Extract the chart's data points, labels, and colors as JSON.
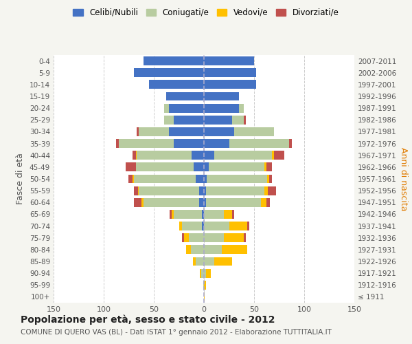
{
  "age_groups": [
    "100+",
    "95-99",
    "90-94",
    "85-89",
    "80-84",
    "75-79",
    "70-74",
    "65-69",
    "60-64",
    "55-59",
    "50-54",
    "45-49",
    "40-44",
    "35-39",
    "30-34",
    "25-29",
    "20-24",
    "15-19",
    "10-14",
    "5-9",
    "0-4"
  ],
  "birth_years": [
    "≤ 1911",
    "1912-1916",
    "1917-1921",
    "1922-1926",
    "1927-1931",
    "1932-1936",
    "1937-1941",
    "1942-1946",
    "1947-1951",
    "1952-1956",
    "1957-1961",
    "1962-1966",
    "1967-1971",
    "1972-1976",
    "1977-1981",
    "1982-1986",
    "1987-1991",
    "1992-1996",
    "1997-2001",
    "2002-2006",
    "2007-2011"
  ],
  "male": {
    "celibi": [
      0,
      0,
      0,
      0,
      0,
      0,
      2,
      2,
      5,
      5,
      8,
      10,
      12,
      30,
      35,
      30,
      35,
      38,
      55,
      70,
      60
    ],
    "coniugati": [
      0,
      1,
      3,
      8,
      13,
      15,
      20,
      28,
      55,
      60,
      62,
      58,
      55,
      55,
      30,
      10,
      5,
      0,
      0,
      0,
      0
    ],
    "vedovi": [
      0,
      0,
      1,
      3,
      5,
      5,
      3,
      2,
      2,
      1,
      1,
      0,
      1,
      0,
      0,
      0,
      0,
      0,
      0,
      0,
      0
    ],
    "divorziati": [
      0,
      0,
      0,
      0,
      0,
      2,
      0,
      2,
      8,
      4,
      4,
      10,
      3,
      3,
      2,
      0,
      0,
      0,
      0,
      0,
      0
    ]
  },
  "female": {
    "nubili": [
      0,
      0,
      0,
      0,
      0,
      0,
      0,
      0,
      2,
      2,
      3,
      5,
      10,
      25,
      30,
      28,
      35,
      35,
      52,
      52,
      50
    ],
    "coniugate": [
      0,
      0,
      2,
      10,
      18,
      20,
      25,
      20,
      55,
      58,
      60,
      55,
      58,
      60,
      40,
      12,
      5,
      0,
      0,
      0,
      0
    ],
    "vedove": [
      1,
      2,
      5,
      18,
      25,
      20,
      18,
      8,
      5,
      4,
      2,
      2,
      2,
      0,
      0,
      0,
      0,
      0,
      0,
      0,
      0
    ],
    "divorziate": [
      0,
      0,
      0,
      0,
      0,
      2,
      2,
      2,
      4,
      8,
      3,
      6,
      10,
      3,
      0,
      2,
      0,
      0,
      0,
      0,
      0
    ]
  },
  "colors": {
    "celibi": "#4472c4",
    "coniugati": "#b8cca0",
    "vedovi": "#ffc000",
    "divorziati": "#c0504d"
  },
  "xlim": 150,
  "title": "Popolazione per età, sesso e stato civile - 2012",
  "subtitle": "COMUNE DI QUERO VAS (BL) - Dati ISTAT 1° gennaio 2012 - Elaborazione TUTTITALIA.IT",
  "ylabel_left": "Fasce di età",
  "ylabel_right": "Anni di nascita",
  "legend_labels": [
    "Celibi/Nubili",
    "Coniugati/e",
    "Vedovi/e",
    "Divorziati/e"
  ],
  "bg_color": "#f5f5f0",
  "plot_bg": "#ffffff"
}
